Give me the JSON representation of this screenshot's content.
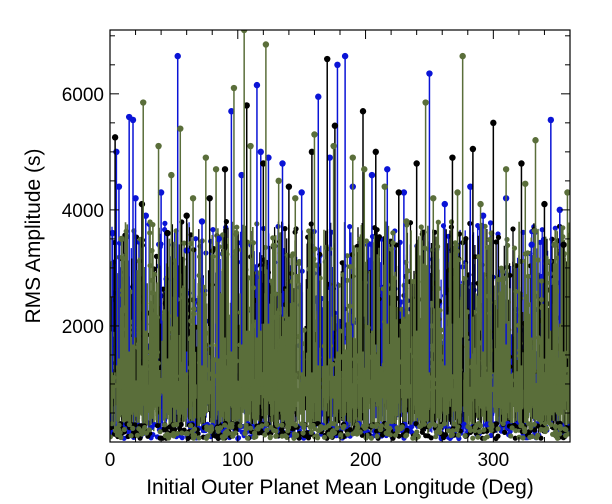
{
  "chart_data": {
    "type": "line",
    "style": "stem-plot with filled circle markers",
    "xlabel": "Initial Outer Planet Mean Longitude (Deg)",
    "ylabel": "RMS Amplitude (s)",
    "xlim": [
      0,
      360
    ],
    "ylim": [
      0,
      7100
    ],
    "x_ticks": [
      0,
      100,
      200,
      300
    ],
    "y_ticks": [
      2000,
      4000,
      6000
    ],
    "grid": false,
    "legend": "none",
    "series": [
      {
        "color": "#0a14d6",
        "x": [
          2,
          5,
          7,
          15,
          18,
          20,
          28,
          40,
          53,
          60,
          72,
          85,
          95,
          103,
          115,
          118,
          124,
          135,
          150,
          163,
          172,
          178,
          184,
          190,
          205,
          217,
          230,
          250,
          262,
          282,
          292,
          310,
          330,
          345,
          352
        ],
        "values": [
          3600,
          5000,
          4400,
          5600,
          5550,
          4200,
          3900,
          4300,
          6650,
          3300,
          3800,
          3500,
          5700,
          4600,
          6150,
          5000,
          4900,
          4800,
          4300,
          5950,
          4900,
          6500,
          6650,
          4400,
          4600,
          4700,
          4300,
          6350,
          4100,
          4400,
          3900,
          4200,
          3400,
          5550,
          4000
        ]
      },
      {
        "color": "#000000",
        "x": [
          4,
          25,
          45,
          60,
          78,
          90,
          107,
          120,
          140,
          158,
          170,
          176,
          198,
          208,
          226,
          240,
          268,
          284,
          300,
          322,
          340,
          355
        ],
        "values": [
          5250,
          4100,
          3600,
          3900,
          4200,
          4700,
          5800,
          4800,
          4400,
          5000,
          6600,
          5450,
          5700,
          5000,
          4300,
          4800,
          4900,
          5050,
          5500,
          4800,
          4100,
          3400
        ]
      },
      {
        "color": "#5a6e3a",
        "x": [
          9,
          26,
          38,
          48,
          55,
          65,
          75,
          83,
          97,
          105,
          110,
          122,
          132,
          145,
          160,
          175,
          190,
          199,
          215,
          232,
          247,
          253,
          272,
          276,
          290,
          310,
          325,
          333,
          348,
          358
        ],
        "values": [
          3500,
          5850,
          5100,
          4600,
          5400,
          4200,
          4900,
          4700,
          6100,
          7100,
          5100,
          6850,
          4500,
          4200,
          5300,
          5100,
          4900,
          4700,
          4400,
          3800,
          5850,
          4200,
          4300,
          6650,
          4100,
          4700,
          4450,
          5200,
          3400,
          4300
        ]
      }
    ]
  }
}
